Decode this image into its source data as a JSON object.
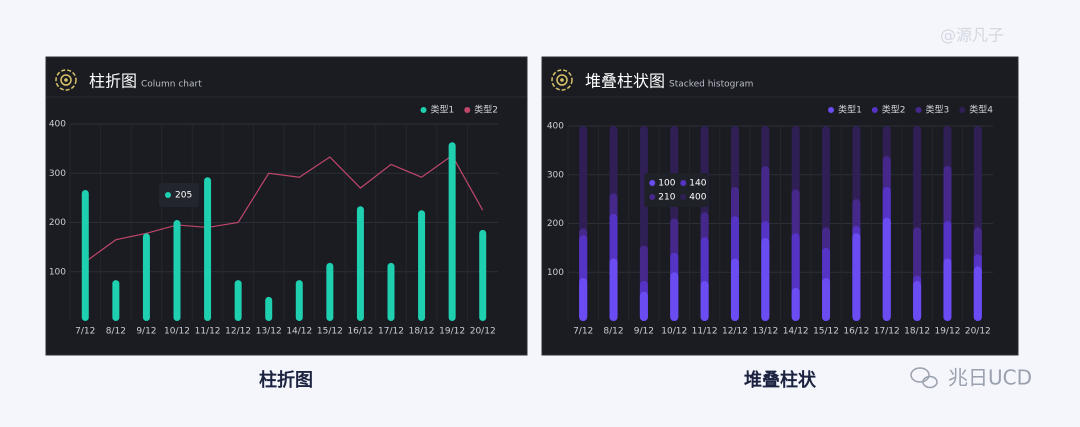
{
  "chart_data": [
    {
      "type": "bar",
      "title": "柱折图",
      "subtitle": "Column chart",
      "legend": "top-right",
      "categories": [
        "7/12",
        "8/12",
        "9/12",
        "10/12",
        "11/12",
        "12/12",
        "13/12",
        "14/12",
        "15/12",
        "16/12",
        "17/12",
        "18/12",
        "19/12",
        "20/12"
      ],
      "series": [
        {
          "name": "类型1",
          "type": "bar",
          "color": "#1ecfb0",
          "values": [
            266,
            83,
            178,
            205,
            292,
            83,
            49,
            83,
            118,
            233,
            118,
            225,
            363,
            185
          ]
        },
        {
          "name": "类型2",
          "type": "line",
          "color": "#c0466a",
          "values": [
            120,
            165,
            178,
            195,
            190,
            200,
            300,
            292,
            333,
            270,
            318,
            292,
            336,
            225
          ]
        }
      ],
      "ylim": [
        0,
        400
      ],
      "yticks": [
        100,
        200,
        300,
        400
      ],
      "grid": true
    },
    {
      "type": "bar",
      "title": "堆叠柱状图",
      "subtitle": "Stacked histogram",
      "legend": "top-right",
      "categories": [
        "7/12",
        "8/12",
        "9/12",
        "10/12",
        "11/12",
        "12/12",
        "13/12",
        "14/12",
        "15/12",
        "16/12",
        "17/12",
        "18/12",
        "19/12",
        "20/12"
      ],
      "series": [
        {
          "name": "类型1",
          "color": "#6a4cf2",
          "values": [
            88,
            128,
            60,
            100,
            82,
            128,
            170,
            68,
            88,
            180,
            212,
            82,
            128,
            112
          ]
        },
        {
          "name": "类型2",
          "color": "#5533c4",
          "values": [
            176,
            220,
            82,
            140,
            172,
            215,
            205,
            180,
            150,
            195,
            275,
            93,
            205,
            137
          ]
        },
        {
          "name": "类型3",
          "color": "#45288a",
          "values": [
            190,
            262,
            155,
            210,
            223,
            275,
            318,
            270,
            192,
            250,
            338,
            192,
            318,
            192
          ]
        },
        {
          "name": "类型4",
          "color": "#2f1f55",
          "values": [
            400,
            400,
            400,
            400,
            400,
            400,
            400,
            400,
            400,
            400,
            400,
            400,
            400,
            400
          ]
        }
      ],
      "ylim": [
        0,
        400
      ],
      "yticks": [
        100,
        200,
        300,
        400
      ],
      "grid": true
    }
  ],
  "captions": [
    "柱折图",
    "堆叠柱状"
  ],
  "watermarks": [
    "@源凡子",
    "兆日UCD"
  ]
}
